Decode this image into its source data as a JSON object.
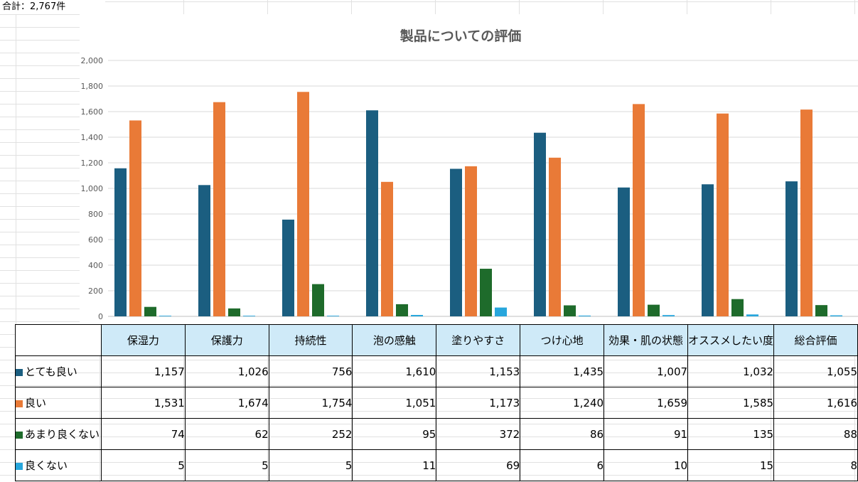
{
  "sheet": {
    "total_label": "合計：2,767件"
  },
  "chart_data": {
    "type": "bar",
    "title": "製品についての評価",
    "categories": [
      "保湿力",
      "保護力",
      "持続性",
      "泡の感触",
      "塗りやすさ",
      "つけ心地",
      "効果・肌の状態",
      "オススメしたい度",
      "総合評価"
    ],
    "series": [
      {
        "name": "とても良い",
        "color": "#1b5e80",
        "values": [
          1157,
          1026,
          756,
          1610,
          1153,
          1435,
          1007,
          1032,
          1055
        ]
      },
      {
        "name": "良い",
        "color": "#e97a37",
        "values": [
          1531,
          1674,
          1754,
          1051,
          1173,
          1240,
          1659,
          1585,
          1616
        ]
      },
      {
        "name": "あまり良くない",
        "color": "#1e6b2b",
        "values": [
          74,
          62,
          252,
          95,
          372,
          86,
          91,
          135,
          88
        ]
      },
      {
        "name": "良くない",
        "color": "#27a6dc",
        "values": [
          5,
          5,
          5,
          11,
          69,
          6,
          10,
          15,
          8
        ]
      }
    ],
    "ylim": [
      0,
      2000
    ],
    "yticks": [
      0,
      200,
      400,
      600,
      800,
      1000,
      1200,
      1400,
      1600,
      1800,
      2000
    ],
    "grid": true,
    "legend": "data table below chart"
  }
}
